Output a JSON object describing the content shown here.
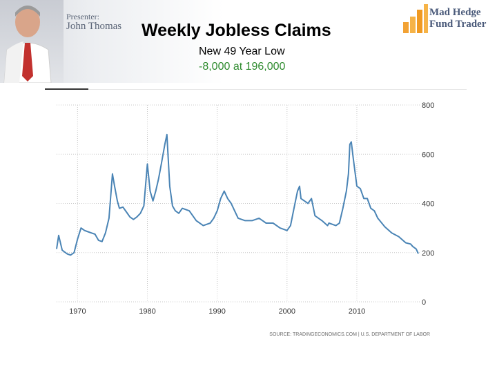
{
  "header": {
    "presenter_label": "Presenter:",
    "presenter_name": "John Thomas",
    "logo_line1": "Mad Hedge",
    "logo_line2": "Fund Trader"
  },
  "slide": {
    "title": "Weekly Jobless Claims",
    "subtitle": "New 49 Year Low",
    "change": "-8,000 at 196,000"
  },
  "colors": {
    "line": "#4a84b5",
    "grid": "#c8c8c8",
    "axis_text": "#333333",
    "change_text": "#2e8b2e"
  },
  "chart_data": {
    "type": "line",
    "title": "",
    "xlabel": "",
    "ylabel": "",
    "xlim": [
      1967,
      2019
    ],
    "ylim": [
      0,
      800
    ],
    "x_ticks": [
      1970,
      1980,
      1990,
      2000,
      2010
    ],
    "x_tick_labels": [
      "1970",
      "1980",
      "1990",
      "2000",
      "2010"
    ],
    "y_ticks": [
      0,
      200,
      400,
      600,
      800
    ],
    "y_tick_labels": [
      "0",
      "200",
      "400",
      "600",
      "800"
    ],
    "y_axis_side": "right",
    "grid": true,
    "source": "SOURCE: TRADINGECONOMICS.COM | U.S. DEPARTMENT OF LABOR",
    "series": [
      {
        "x": [
          1967.0,
          1967.3,
          1967.8,
          1968.5,
          1969.0,
          1969.5,
          1970.0,
          1970.5,
          1971.0,
          1971.5,
          1972.0,
          1972.5,
          1973.0,
          1973.5,
          1974.0,
          1974.5,
          1975.0,
          1975.3,
          1975.7,
          1976.0,
          1976.5,
          1977.0,
          1977.5,
          1978.0,
          1978.5,
          1979.0,
          1979.5,
          1980.0,
          1980.4,
          1980.8,
          1981.2,
          1981.6,
          1982.0,
          1982.5,
          1982.8,
          1983.2,
          1983.6,
          1984.0,
          1984.5,
          1985.0,
          1986.0,
          1987.0,
          1988.0,
          1989.0,
          1989.5,
          1990.0,
          1990.5,
          1991.0,
          1991.5,
          1992.0,
          1992.5,
          1993.0,
          1994.0,
          1995.0,
          1996.0,
          1997.0,
          1998.0,
          1999.0,
          2000.0,
          2000.5,
          2001.0,
          2001.5,
          2001.8,
          2002.0,
          2002.5,
          2003.0,
          2003.5,
          2004.0,
          2005.0,
          2005.8,
          2006.0,
          2007.0,
          2007.5,
          2008.0,
          2008.5,
          2008.8,
          2009.0,
          2009.2,
          2009.5,
          2010.0,
          2010.5,
          2011.0,
          2011.5,
          2012.0,
          2012.5,
          2013.0,
          2014.0,
          2015.0,
          2016.0,
          2017.0,
          2017.7,
          2018.0,
          2018.5,
          2018.8
        ],
        "values": [
          215,
          270,
          210,
          195,
          190,
          200,
          255,
          300,
          290,
          285,
          280,
          275,
          250,
          245,
          280,
          340,
          520,
          470,
          410,
          380,
          385,
          365,
          345,
          335,
          345,
          360,
          390,
          560,
          450,
          410,
          450,
          500,
          560,
          640,
          680,
          470,
          390,
          370,
          360,
          380,
          370,
          330,
          310,
          320,
          340,
          370,
          420,
          450,
          420,
          400,
          370,
          340,
          330,
          330,
          340,
          320,
          320,
          300,
          290,
          310,
          380,
          450,
          470,
          420,
          410,
          400,
          420,
          350,
          330,
          310,
          320,
          310,
          320,
          380,
          450,
          520,
          640,
          650,
          580,
          470,
          460,
          420,
          420,
          380,
          370,
          340,
          305,
          280,
          265,
          240,
          235,
          225,
          215,
          196
        ]
      }
    ]
  }
}
